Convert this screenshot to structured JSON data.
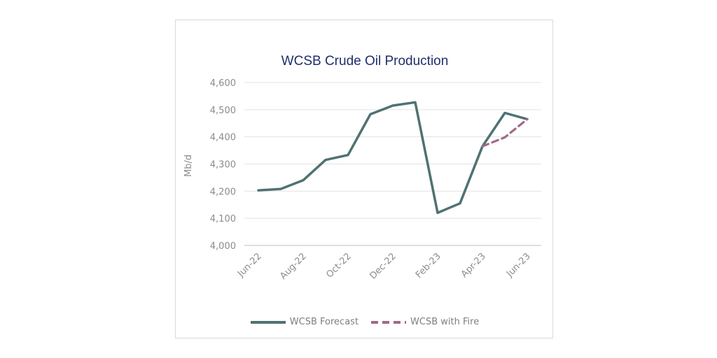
{
  "chart_data": {
    "type": "line",
    "title": "WCSB Crude Oil Production",
    "ylabel": "Mb/d",
    "xlabel": "",
    "ylim": [
      4000,
      4600
    ],
    "yticks": [
      4000,
      4100,
      4200,
      4300,
      4400,
      4500,
      4600
    ],
    "ytick_labels": [
      "4,000",
      "4,100",
      "4,200",
      "4,300",
      "4,400",
      "4,500",
      "4,600"
    ],
    "x_tick_labels": [
      "Jun-22",
      "Aug-22",
      "Oct-22",
      "Dec-22",
      "Feb-23",
      "Apr-23",
      "Jun-23"
    ],
    "categories": [
      "Jun-22",
      "Jul-22",
      "Aug-22",
      "Sep-22",
      "Oct-22",
      "Nov-22",
      "Dec-22",
      "Jan-23",
      "Feb-23",
      "Mar-23",
      "Apr-23",
      "May-23",
      "Jun-23"
    ],
    "grid": true,
    "legend_position": "bottom",
    "series": [
      {
        "name": "WCSB Forecast",
        "color": "#4f7272",
        "style": "solid",
        "values": [
          4203,
          4208,
          4240,
          4315,
          4333,
          4483,
          4515,
          4527,
          4120,
          4155,
          4365,
          4488,
          4465
        ]
      },
      {
        "name": "WCSB with Fire",
        "color": "#a06a87",
        "style": "dashed",
        "values": [
          null,
          null,
          null,
          null,
          null,
          null,
          null,
          null,
          null,
          null,
          4365,
          4398,
          4465
        ]
      }
    ]
  }
}
